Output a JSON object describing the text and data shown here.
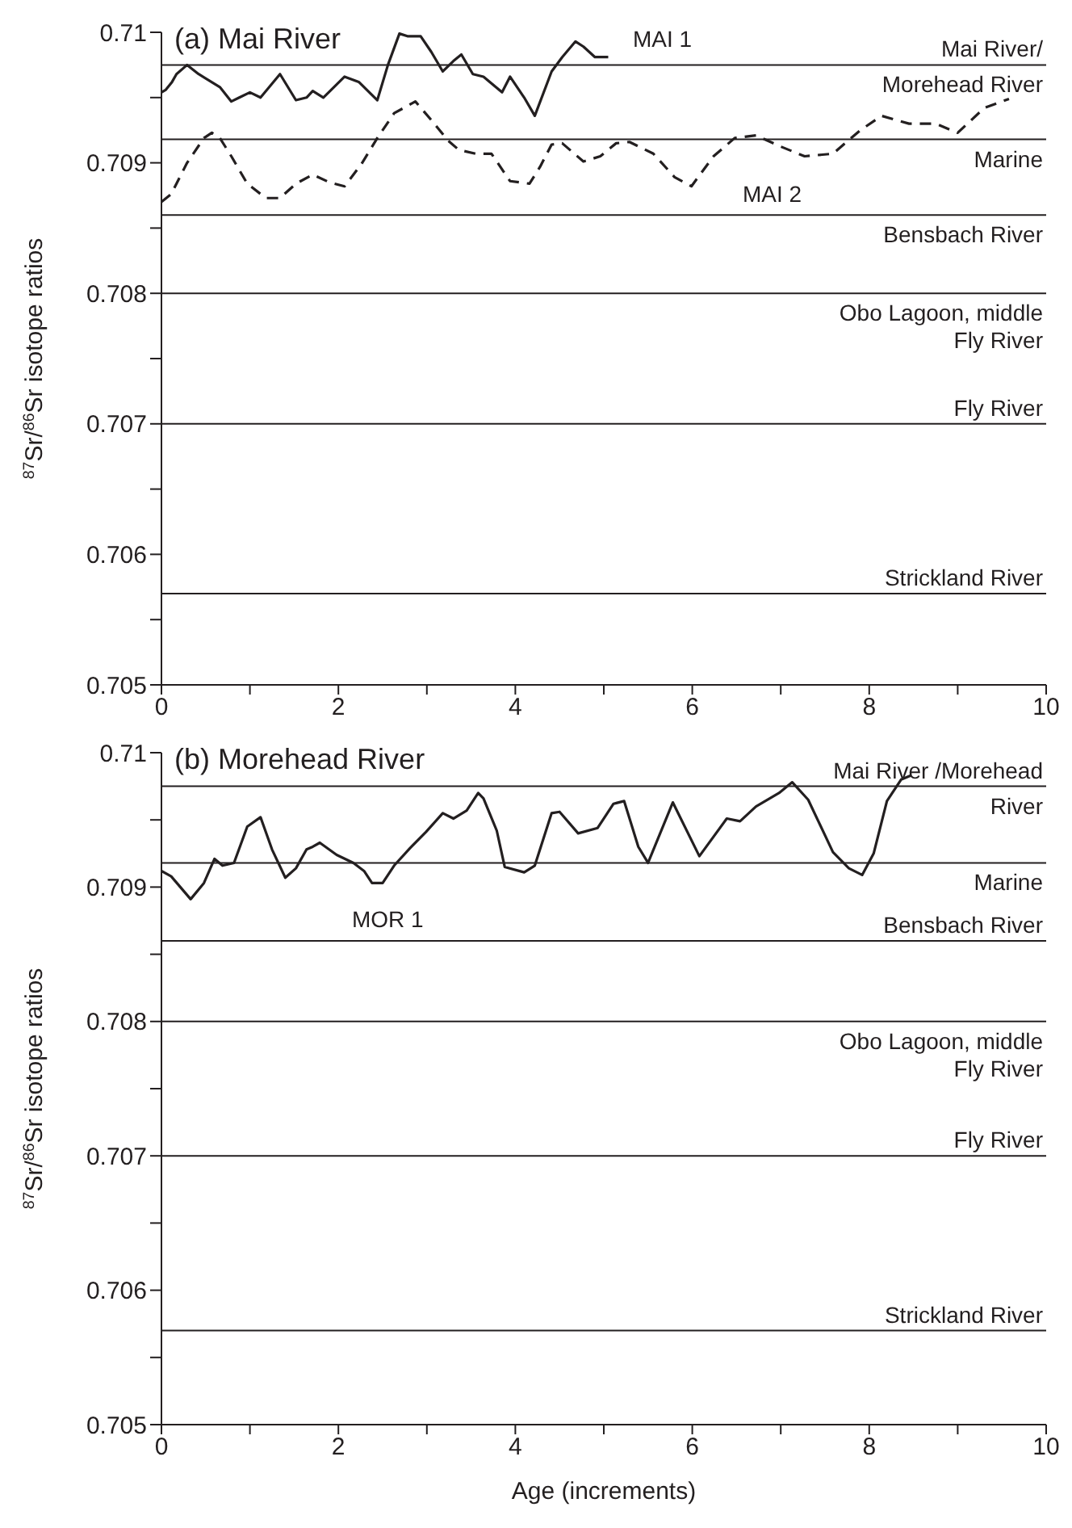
{
  "chart_data": [
    {
      "type": "line",
      "title": "(a) Mai River",
      "ylabel": "$^{87}$Sr/$^{86}$Sr isotope ratios",
      "xlim": [
        0,
        10
      ],
      "xticks": [
        0,
        {
          "value": 1,
          "label": null
        },
        2,
        {
          "value": 3,
          "label": null
        },
        4,
        {
          "value": 5,
          "label": null
        },
        6,
        {
          "value": 7,
          "label": null
        },
        8,
        {
          "value": 9,
          "label": null
        },
        10
      ],
      "ylim": [
        0.705,
        0.71
      ],
      "yticks": [
        0.705,
        {
          "value": 0.7055,
          "label": null
        },
        0.706,
        {
          "value": 0.7065,
          "label": null
        },
        0.707,
        {
          "value": 0.7075,
          "label": null
        },
        0.708,
        {
          "value": 0.7085,
          "label": null
        },
        0.709,
        {
          "value": 0.7095,
          "label": null
        },
        0.71
      ],
      "grid": false,
      "marker": "none",
      "series": [
        {
          "color": "#231f20",
          "line_style": "solid",
          "x": [
            0,
            0.05,
            0.12,
            0.17,
            0.29,
            0.42,
            0.66,
            0.79,
            0.88,
            1.0,
            1.12,
            1.34,
            1.52,
            1.64,
            1.71,
            1.83,
            2.07,
            2.23,
            2.44,
            2.56,
            2.69,
            2.78,
            2.93,
            3.05,
            3.18,
            3.3,
            3.39,
            3.52,
            3.64,
            3.85,
            3.94,
            4.1,
            4.22,
            4.41,
            4.53,
            4.68,
            4.77,
            4.9,
            5.05
          ],
          "values": [
            0.70954,
            0.70956,
            0.70962,
            0.70968,
            0.70975,
            0.70968,
            0.70958,
            0.70947,
            0.7095,
            0.70954,
            0.7095,
            0.70968,
            0.70948,
            0.7095,
            0.70955,
            0.7095,
            0.70966,
            0.70962,
            0.70948,
            0.70975,
            0.70999,
            0.70997,
            0.70997,
            0.70985,
            0.7097,
            0.70978,
            0.70983,
            0.70968,
            0.70966,
            0.70954,
            0.70966,
            0.7095,
            0.70936,
            0.7097,
            0.70981,
            0.70993,
            0.70989,
            0.70981,
            0.70981
          ]
        },
        {
          "color": "#231f20",
          "line_style": "dashed",
          "x": [
            0,
            0.11,
            0.29,
            0.48,
            0.57,
            0.66,
            0.79,
            0.97,
            1.18,
            1.34,
            1.52,
            1.71,
            1.9,
            2.07,
            2.26,
            2.44,
            2.63,
            2.87,
            3.06,
            3.24,
            3.36,
            3.55,
            3.73,
            3.94,
            4.16,
            4.28,
            4.41,
            4.53,
            4.77,
            4.96,
            5.14,
            5.29,
            5.56,
            5.8,
            5.99,
            6.24,
            6.48,
            6.72,
            6.98,
            7.27,
            7.59,
            7.9,
            8.14,
            8.45,
            8.75,
            9.0,
            9.3,
            9.58
          ],
          "values": [
            0.7087,
            0.70876,
            0.709,
            0.70919,
            0.70923,
            0.70919,
            0.70905,
            0.70884,
            0.70873,
            0.70873,
            0.70884,
            0.70891,
            0.70885,
            0.70882,
            0.70899,
            0.70919,
            0.70938,
            0.70947,
            0.70932,
            0.70917,
            0.7091,
            0.70907,
            0.70907,
            0.70886,
            0.70884,
            0.70897,
            0.70914,
            0.70915,
            0.70901,
            0.70905,
            0.70915,
            0.70916,
            0.70907,
            0.70889,
            0.70882,
            0.70905,
            0.70919,
            0.70921,
            0.70913,
            0.70905,
            0.70907,
            0.70925,
            0.70936,
            0.7093,
            0.7093,
            0.70923,
            0.70942,
            0.70949
          ]
        }
      ],
      "ref_lines": [
        {
          "axis": "y",
          "value": 0.70975,
          "label": "Mai River/ Morehead River"
        },
        {
          "axis": "y",
          "value": 0.70918,
          "label": "Marine"
        },
        {
          "axis": "y",
          "value": 0.7086,
          "label": "Bensbach River"
        },
        {
          "axis": "y",
          "value": 0.708,
          "label": "Obo Lagoon, middle Fly River"
        },
        {
          "axis": "y",
          "value": 0.707,
          "label": "Fly River"
        },
        {
          "axis": "y",
          "value": 0.7057,
          "label": "Strickland River"
        }
      ],
      "annotations": [
        "MAI 1",
        "MAI 2"
      ]
    },
    {
      "type": "line",
      "title": "(b) Morehead River",
      "xlabel": "Age (increments)",
      "ylabel": "$^{87}$Sr/$^{86}$Sr isotope ratios",
      "xlim": [
        0,
        10
      ],
      "xticks": [
        0,
        {
          "value": 1,
          "label": null
        },
        2,
        {
          "value": 3,
          "label": null
        },
        4,
        {
          "value": 5,
          "label": null
        },
        6,
        {
          "value": 7,
          "label": null
        },
        8,
        {
          "value": 9,
          "label": null
        },
        10
      ],
      "ylim": [
        0.705,
        0.71
      ],
      "yticks": [
        0.705,
        {
          "value": 0.7055,
          "label": null
        },
        0.706,
        {
          "value": 0.7065,
          "label": null
        },
        0.707,
        {
          "value": 0.7075,
          "label": null
        },
        0.708,
        {
          "value": 0.7085,
          "label": null
        },
        0.709,
        {
          "value": 0.7095,
          "label": null
        },
        0.71
      ],
      "grid": false,
      "marker": "none",
      "series": [
        {
          "color": "#231f20",
          "line_style": "solid",
          "x": [
            0,
            0.11,
            0.33,
            0.48,
            0.6,
            0.69,
            0.82,
            0.97,
            1.12,
            1.25,
            1.4,
            1.52,
            1.64,
            1.71,
            1.79,
            1.98,
            2.17,
            2.29,
            2.38,
            2.5,
            2.63,
            2.81,
            2.99,
            3.18,
            3.3,
            3.45,
            3.58,
            3.64,
            3.79,
            3.88,
            4.1,
            4.22,
            4.41,
            4.5,
            4.71,
            4.93,
            5.11,
            5.23,
            5.39,
            5.5,
            5.78,
            6.08,
            6.39,
            6.54,
            6.72,
            6.98,
            7.13,
            7.31,
            7.59,
            7.77,
            7.92,
            8.05,
            8.2,
            8.36,
            8.47
          ],
          "values": [
            0.70912,
            0.70908,
            0.70891,
            0.70903,
            0.70921,
            0.70916,
            0.70918,
            0.70945,
            0.70952,
            0.70928,
            0.70907,
            0.70914,
            0.70928,
            0.7093,
            0.70933,
            0.70924,
            0.70918,
            0.70912,
            0.70903,
            0.70903,
            0.70916,
            0.70929,
            0.70941,
            0.70955,
            0.70951,
            0.70957,
            0.7097,
            0.70966,
            0.70942,
            0.70915,
            0.70911,
            0.70916,
            0.70955,
            0.70956,
            0.7094,
            0.70944,
            0.70962,
            0.70964,
            0.7093,
            0.70918,
            0.70963,
            0.70923,
            0.70951,
            0.70949,
            0.7096,
            0.7097,
            0.70978,
            0.70965,
            0.70926,
            0.70914,
            0.70909,
            0.70925,
            0.70964,
            0.7098,
            0.70983
          ]
        }
      ],
      "ref_lines": [
        {
          "axis": "y",
          "value": 0.70975,
          "label": "Mai River /Morehead River"
        },
        {
          "axis": "y",
          "value": 0.70918,
          "label": "Marine"
        },
        {
          "axis": "y",
          "value": 0.7086,
          "label": "Bensbach River"
        },
        {
          "axis": "y",
          "value": 0.708,
          "label": "Obo Lagoon, middle Fly River"
        },
        {
          "axis": "y",
          "value": 0.707,
          "label": "Fly River"
        },
        {
          "axis": "y",
          "value": 0.7057,
          "label": "Strickland River"
        }
      ],
      "annotations": [
        "MOR 1"
      ]
    }
  ]
}
